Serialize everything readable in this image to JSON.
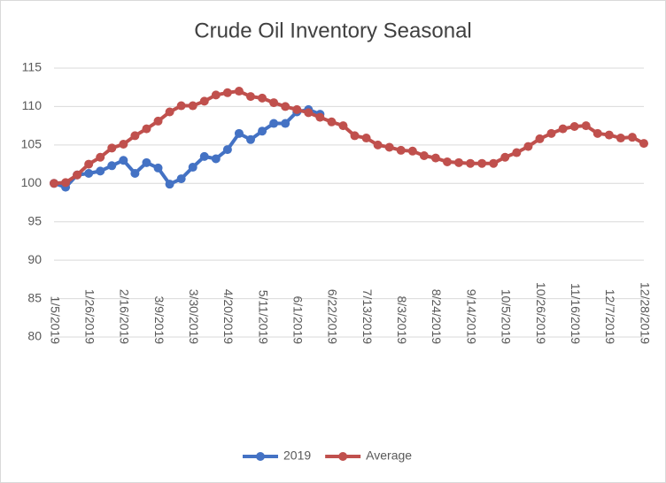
{
  "chart_data": {
    "type": "line",
    "title": "Crude Oil Inventory Seasonal",
    "categories": [
      "1/5/2019",
      null,
      null,
      "1/26/2019",
      null,
      null,
      "2/16/2019",
      null,
      null,
      "3/9/2019",
      null,
      null,
      "3/30/2019",
      null,
      null,
      "4/20/2019",
      null,
      null,
      "5/11/2019",
      null,
      null,
      "6/1/2019",
      null,
      null,
      "6/22/2019",
      null,
      null,
      "7/13/2019",
      null,
      null,
      "8/3/2019",
      null,
      null,
      "8/24/2019",
      null,
      null,
      "9/14/2019",
      null,
      null,
      "10/5/2019",
      null,
      null,
      "10/26/2019",
      null,
      null,
      "11/16/2019",
      null,
      null,
      "12/7/2019",
      null,
      null,
      "12/28/2019"
    ],
    "series": [
      {
        "name": "2019",
        "color": "#4472c4",
        "values": [
          100.0,
          99.5,
          101.1,
          101.3,
          101.6,
          102.3,
          103.0,
          101.3,
          102.7,
          102.0,
          99.9,
          100.6,
          102.1,
          103.5,
          103.2,
          104.4,
          106.5,
          105.7,
          106.8,
          107.8,
          107.8,
          109.3,
          109.6,
          109.0,
          null,
          null,
          null,
          null,
          null,
          null,
          null,
          null,
          null,
          null,
          null,
          null,
          null,
          null,
          null,
          null,
          null,
          null,
          null,
          null,
          null,
          null,
          null,
          null,
          null,
          null,
          null,
          null
        ]
      },
      {
        "name": "Average",
        "color": "#c0504d",
        "values": [
          100.0,
          100.1,
          101.1,
          102.5,
          103.4,
          104.6,
          105.1,
          106.2,
          107.1,
          108.1,
          109.3,
          110.1,
          110.1,
          110.7,
          111.5,
          111.8,
          112.0,
          111.3,
          111.1,
          110.5,
          110.0,
          109.6,
          109.2,
          108.6,
          108.0,
          107.5,
          106.2,
          105.9,
          105.0,
          104.7,
          104.3,
          104.2,
          103.6,
          103.3,
          102.8,
          102.7,
          102.6,
          102.6,
          102.6,
          103.4,
          104.0,
          104.8,
          105.8,
          106.5,
          107.1,
          107.4,
          107.5,
          106.5,
          106.3,
          105.9,
          106.0,
          105.2
        ]
      }
    ],
    "ylim": [
      80,
      115
    ],
    "yticks": [
      80,
      85,
      90,
      95,
      100,
      105,
      110,
      115
    ],
    "grid": true,
    "legend": "bottom"
  }
}
